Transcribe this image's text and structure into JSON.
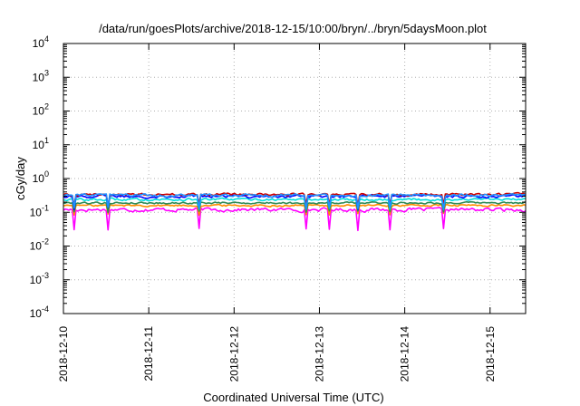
{
  "chart_data": {
    "type": "line",
    "title": "/data/run/goesPlots/archive/2018-12-15/10:00/bryn/../bryn/5daysMoon.plot",
    "xlabel": "Coordinated Universal Time (UTC)",
    "ylabel": "cGy/day",
    "yscale": "log",
    "ylim": [
      0.0001,
      10000
    ],
    "xlim": [
      "2018-12-10T00:00",
      "2018-12-15T10:00"
    ],
    "grid": true,
    "x_ticks": [
      "2018-12-10",
      "2018-12-11",
      "2018-12-12",
      "2018-12-13",
      "2018-12-14",
      "2018-12-15"
    ],
    "y_ticks": [
      {
        "base": "10",
        "exp": "-4"
      },
      {
        "base": "10",
        "exp": "-3"
      },
      {
        "base": "10",
        "exp": "-2"
      },
      {
        "base": "10",
        "exp": "-1"
      },
      {
        "base": "10",
        "exp": "0"
      },
      {
        "base": "10",
        "exp": "1"
      },
      {
        "base": "10",
        "exp": "2"
      },
      {
        "base": "10",
        "exp": "3"
      },
      {
        "base": "10",
        "exp": "4"
      }
    ],
    "series": [
      {
        "color": "#ff00ff",
        "level": 0.12,
        "noise": 0.22,
        "dip": 0.25
      },
      {
        "color": "#ff8c00",
        "level": 0.16,
        "noise": 0.12,
        "dip": 0.55
      },
      {
        "color": "#2e8b57",
        "level": 0.19,
        "noise": 0.12,
        "dip": 0.55
      },
      {
        "color": "#00dddd",
        "level": 0.24,
        "noise": 0.15,
        "dip": 0.55
      },
      {
        "color": "#0000ff",
        "level": 0.3,
        "noise": 0.18,
        "dip": 0.45
      },
      {
        "color": "#cc0000",
        "level": 0.34,
        "noise": 0.15,
        "dip": 0.5
      },
      {
        "color": "#1e90ff",
        "level": 0.32,
        "noise": 0.17,
        "dip": 0.4
      }
    ]
  }
}
